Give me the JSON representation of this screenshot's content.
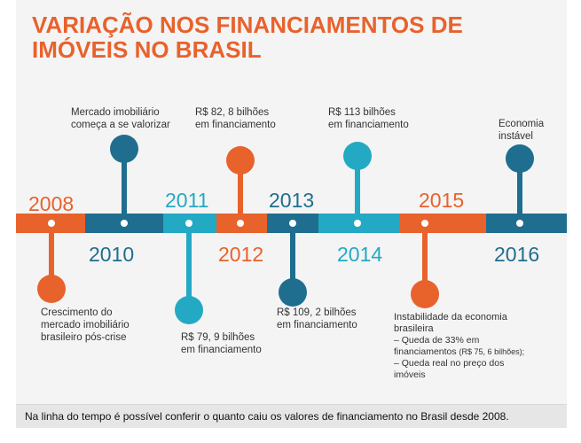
{
  "title": "VARIAÇÃO NOS FINANCIAMENTOS DE IMÓVEIS NO BRASIL",
  "colors": {
    "orange": "#e8622c",
    "blue": "#1f6e8f",
    "cyan": "#23a9c4",
    "orange_year": "#e8622c",
    "blue_year": "#1f6e8f",
    "cyan_year": "#23a9c4"
  },
  "events": [
    {
      "year": "2008",
      "text": [
        "Crescimento do",
        "mercado imobiliário",
        "brasileiro pós-crise"
      ]
    },
    {
      "year": "2010",
      "text": [
        "Mercado imobiliário",
        "começa a se valorizar"
      ]
    },
    {
      "year": "2011",
      "text": [
        "R$ 79, 9 bilhões",
        "em financiamento"
      ]
    },
    {
      "year": "2012",
      "text": [
        "R$ 82, 8 bilhões",
        "em financiamento"
      ]
    },
    {
      "year": "2013",
      "text": [
        "R$ 109, 2 bilhões",
        "em financiamento"
      ]
    },
    {
      "year": "2014",
      "text": [
        "R$ 113 bilhões",
        "em financiamento"
      ]
    },
    {
      "year": "2015",
      "text": [
        "Instabilidade da economia",
        "brasileira",
        "– Queda de 33% em",
        "financiamentos",
        "(R$ 75, 6 bilhões);",
        "– Queda real no preço dos",
        "imóveis"
      ]
    },
    {
      "year": "2016",
      "text": [
        "Economia",
        "instável"
      ]
    }
  ],
  "caption": "Na linha do tempo é possível conferir o quanto caiu os valores de financiamento no Brasil desde 2008."
}
